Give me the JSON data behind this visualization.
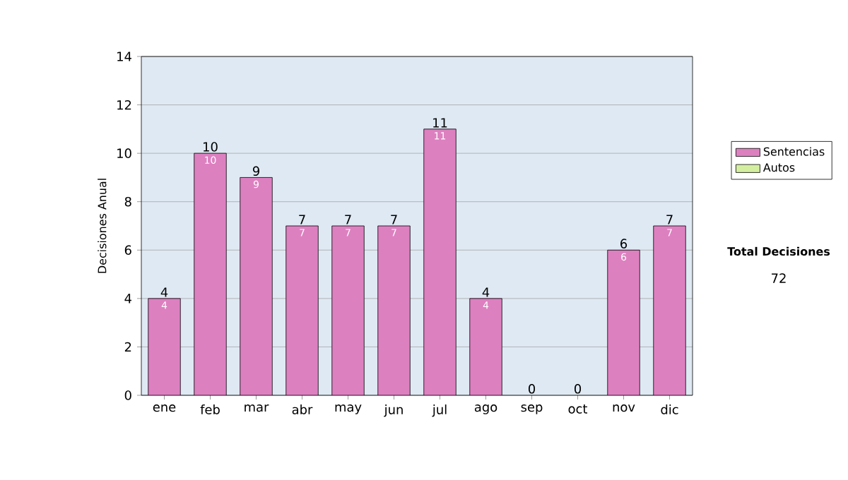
{
  "chart_data": {
    "type": "bar",
    "stacked": true,
    "ylabel": "Decisiones Anual",
    "categories": [
      "ene",
      "feb",
      "mar",
      "abr",
      "may",
      "jun",
      "jul",
      "ago",
      "sep",
      "oct",
      "nov",
      "dic"
    ],
    "series": [
      {
        "name": "Sentencias",
        "color": "#dd80c0",
        "values": [
          4,
          10,
          9,
          7,
          7,
          7,
          11,
          4,
          0,
          0,
          6,
          7
        ],
        "value_labels": [
          "4",
          "10",
          "9",
          "7",
          "7",
          "7",
          "11",
          "4",
          null,
          null,
          "6",
          "7"
        ]
      },
      {
        "name": "Autos",
        "color": "#d4eea0",
        "values": [
          0,
          0,
          0,
          0,
          0,
          0,
          0,
          0,
          0,
          0,
          0,
          0
        ]
      }
    ],
    "totals": [
      "4",
      "10",
      "9",
      "7",
      "7",
      "7",
      "11",
      "4",
      "0",
      "0",
      "6",
      "7"
    ],
    "ylim": [
      0,
      14
    ],
    "yticks": [
      0,
      2,
      4,
      6,
      8,
      10,
      12,
      14
    ],
    "grid": "y",
    "legend": "right",
    "annotations": [
      "Total Decisiones",
      "72"
    ]
  }
}
